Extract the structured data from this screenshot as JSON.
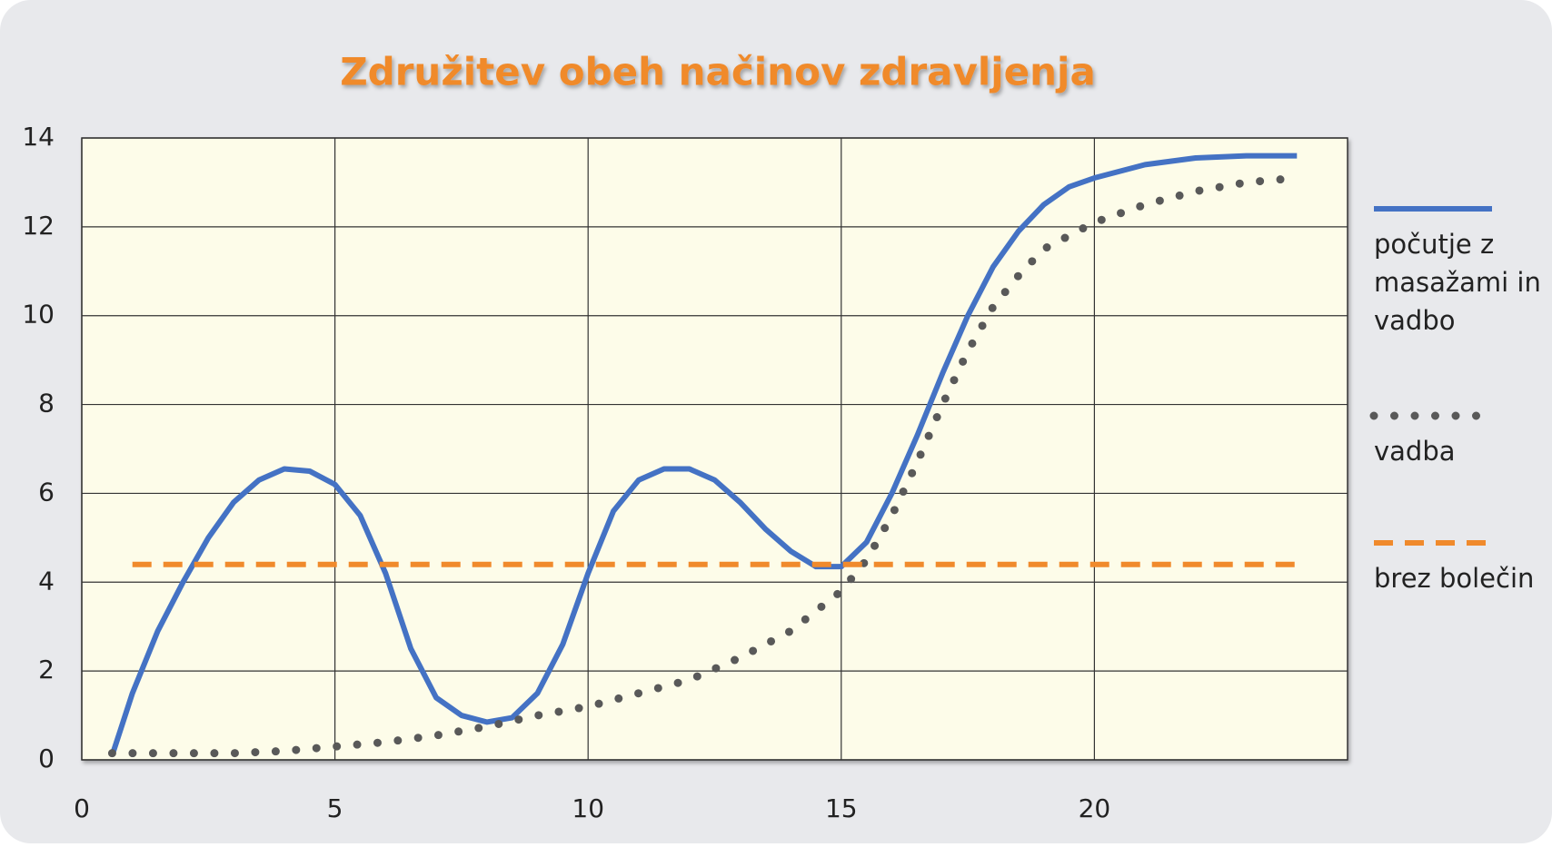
{
  "chart_data": {
    "type": "line",
    "title": "Združitev obeh načinov zdravljenja",
    "xlim": [
      0,
      25
    ],
    "xticks": [
      0,
      5,
      10,
      15,
      20
    ],
    "ylim": [
      0,
      14
    ],
    "yticks": [
      0,
      2,
      4,
      6,
      8,
      10,
      12,
      14
    ],
    "grid": true,
    "legend": "right",
    "series": [
      {
        "name": "počutje z masažami in vadbo",
        "color": "#4472c4",
        "style": "solid",
        "x": [
          0.6,
          1,
          1.5,
          2,
          2.5,
          3,
          3.5,
          4,
          4.5,
          5,
          5.5,
          6,
          6.5,
          7,
          7.5,
          8,
          8.5,
          9,
          9.5,
          10,
          10.5,
          11,
          11.5,
          12,
          12.5,
          13,
          13.5,
          14,
          14.5,
          15,
          15.5,
          16,
          16.5,
          17,
          17.5,
          18,
          18.5,
          19,
          19.5,
          20,
          21,
          22,
          23,
          24
        ],
        "values": [
          0.1,
          1.5,
          2.9,
          4,
          5,
          5.8,
          6.3,
          6.55,
          6.5,
          6.2,
          5.5,
          4.2,
          2.5,
          1.4,
          1.0,
          0.85,
          0.95,
          1.5,
          2.6,
          4.2,
          5.6,
          6.3,
          6.55,
          6.55,
          6.3,
          5.8,
          5.2,
          4.7,
          4.35,
          4.35,
          4.9,
          6.0,
          7.3,
          8.7,
          10,
          11.1,
          11.9,
          12.5,
          12.9,
          13.1,
          13.4,
          13.55,
          13.6,
          13.6
        ]
      },
      {
        "name": "vadba",
        "color": "#595959",
        "style": "dotted",
        "x": [
          0.6,
          2,
          3,
          4,
          5,
          6,
          7,
          8,
          9,
          10,
          11,
          12,
          13,
          14,
          15,
          15.5,
          16,
          16.5,
          17,
          17.5,
          18,
          18.5,
          19,
          20,
          21,
          22,
          23,
          24
        ],
        "values": [
          0.15,
          0.15,
          0.15,
          0.2,
          0.3,
          0.4,
          0.55,
          0.75,
          1.0,
          1.2,
          1.5,
          1.8,
          2.3,
          2.9,
          3.8,
          4.5,
          5.5,
          6.7,
          8.0,
          9.2,
          10.2,
          10.9,
          11.5,
          12.1,
          12.5,
          12.8,
          13.0,
          13.1
        ]
      },
      {
        "name": "brez bolečin",
        "color": "#f08a2c",
        "style": "dashed",
        "x": [
          1,
          24
        ],
        "values": [
          4.4,
          4.4
        ]
      }
    ]
  }
}
